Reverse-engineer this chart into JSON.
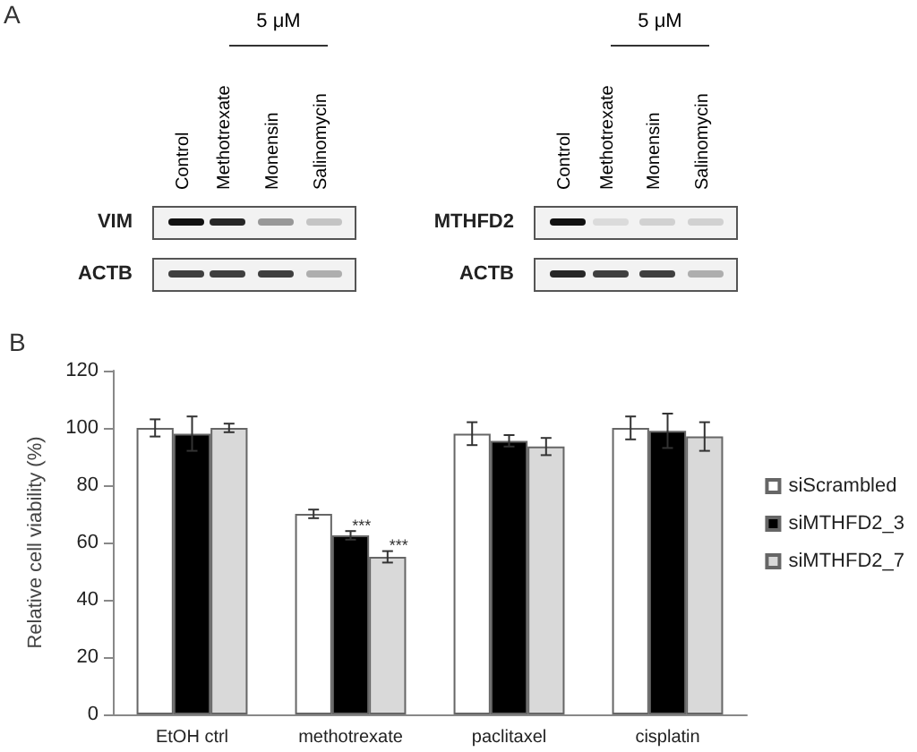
{
  "chart_data": [
    {
      "type": "other",
      "title": "A",
      "annotations": [
        "5 μM",
        "Control",
        "Methotrexate",
        "Monensin",
        "Salinomycin",
        "VIM",
        "ACTB",
        "5 μM",
        "Control",
        "Methotrexate",
        "Monensin",
        "Salinomycin",
        "MTHFD2",
        "ACTB"
      ]
    },
    {
      "type": "bar",
      "title": "B",
      "ylabel": "Relative cell viability (%)",
      "categories": [
        "EtOH ctrl",
        "methotrexate",
        "paclitaxel",
        "cisplatin"
      ],
      "series": [
        {
          "name": "siScrambled",
          "color": "#ffffff",
          "values": [
            100,
            70,
            98,
            100
          ],
          "errors": [
            3,
            1.5,
            4,
            4
          ]
        },
        {
          "name": "siMTHFD2_3",
          "color": "#000000",
          "values": [
            98,
            62.5,
            95.5,
            99
          ],
          "errors": [
            6,
            1.5,
            2,
            6
          ]
        },
        {
          "name": "siMTHFD2_7",
          "color": "#d9d9d9",
          "values": [
            100,
            55,
            93.5,
            97
          ],
          "errors": [
            1.5,
            2,
            3,
            5
          ]
        }
      ],
      "annotations": [
        {
          "text": "***",
          "x": "methotrexate",
          "y": 66
        },
        {
          "text": "***",
          "x": "methotrexate",
          "y": 59
        }
      ],
      "ylim": [
        0,
        120
      ],
      "yticks": [
        0,
        20,
        40,
        60,
        80,
        100,
        120
      ],
      "grid": false,
      "legend": "right"
    }
  ]
}
